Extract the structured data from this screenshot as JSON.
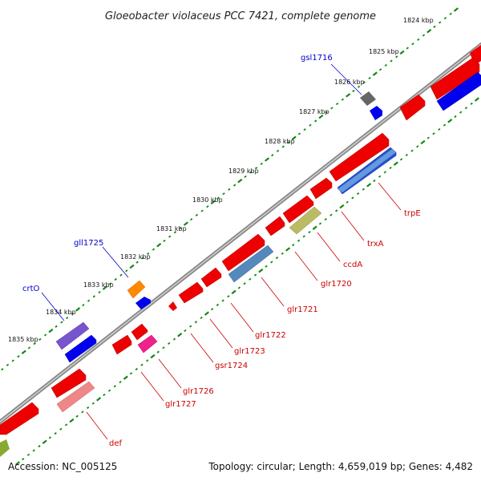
{
  "title": "Gloeobacter violaceus PCC 7421, complete genome",
  "footer": {
    "accession": "Accession: NC_005125",
    "summary": "Topology: circular; Length: 4,659,019 bp; Genes: 4,482"
  },
  "ticks": [
    "1824 kbp",
    "1825 kbp",
    "1826 kbp",
    "1827 kbp",
    "1828 kbp",
    "1829 kbp",
    "1830 kbp",
    "1831 kbp",
    "1832 kbp",
    "1833 kbp",
    "1834 kbp",
    "1835 kbp"
  ],
  "colors": {
    "forward_label": "#0000cc",
    "reverse_label": "#cc0000",
    "backbone": "#808080",
    "tick": "#118811"
  },
  "forward_labels": [
    "gsl1716",
    "gll1725",
    "crtO"
  ],
  "reverse_labels": [
    "trpE",
    "trxA",
    "ccdA",
    "glr1720",
    "glr1721",
    "glr1722",
    "glr1723",
    "gsr1724",
    "glr1726",
    "glr1727",
    "def"
  ]
}
